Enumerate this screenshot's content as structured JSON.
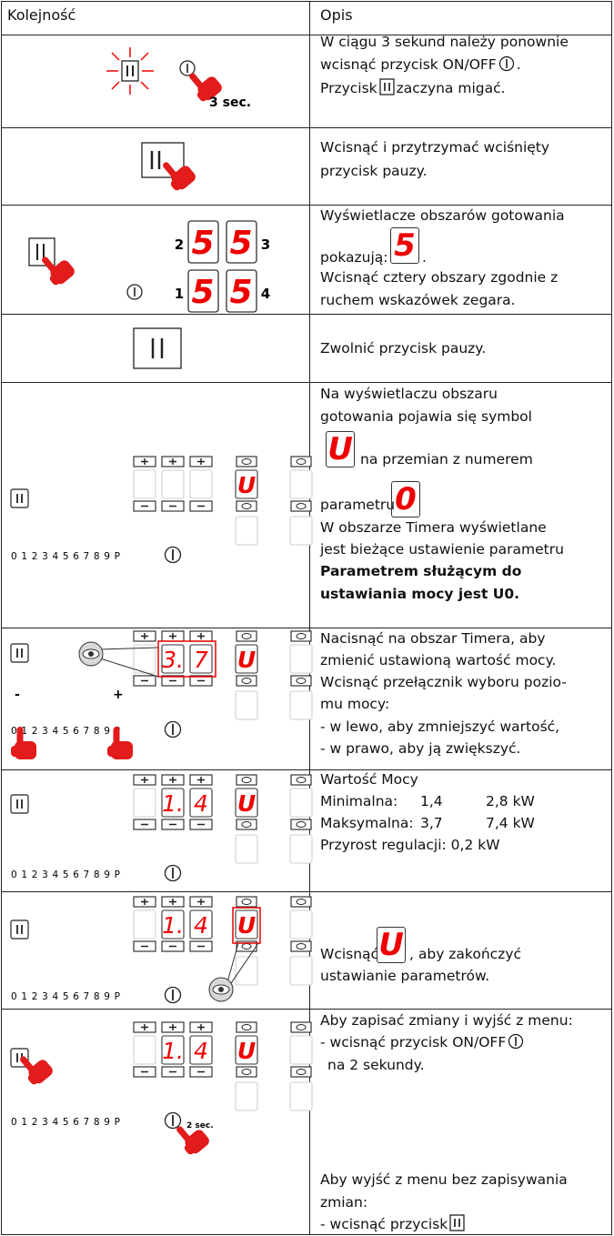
{
  "table": {
    "header": [
      "Kolejność",
      "Opis"
    ],
    "rows": [
      {
        "illustration": {
          "label": "3 sec."
        },
        "description": [
          "W ciągu 3 sekund należy ponownie",
          "wcisnąć przycisk ON/OFF",
          ".",
          "Przycisk",
          "zaczyna migać."
        ]
      },
      {
        "description": [
          "Wcisnąć i przytrzymać wciśnięty",
          "przycisk pauzy."
        ]
      },
      {
        "illustration": {
          "zones": [
            "2",
            "3",
            "1",
            "4"
          ],
          "display": "5"
        },
        "description": [
          "Wyświetlacze obszarów gotowania",
          "pokazują:",
          ".",
          "Wcisnąć cztery obszary zgodnie z",
          "ruchem wskazówek zegara."
        ],
        "symbols": [
          "5"
        ]
      },
      {
        "description": [
          "Zwolnić przycisk pauzy."
        ]
      },
      {
        "illustration": {
          "scale": "0 1 2 3 4 5 6 7 8 9 P",
          "timer": "U"
        },
        "description": [
          "Na wyświetlaczu obszaru",
          "gotowania pojawia się symbol",
          "na przemian z numerem",
          "parametru",
          "W obszarze Timera wyświetlane",
          "jest bieżące ustawienie parametru",
          "Parametrem służącym do",
          "ustawiania mocy jest U0."
        ],
        "symbols": [
          "U",
          "0"
        ]
      },
      {
        "illustration": {
          "scale": "0 1 2 3 4 5 6 7 8 9 P",
          "power": [
            "3.",
            "7"
          ],
          "timer": "U",
          "minus": "-",
          "plus": "+"
        },
        "description": [
          "Nacisnąć na obszar Timera, aby",
          "zmienić ustawioną wartość mocy.",
          "Wcisnąć przełącznik wyboru pozio-",
          "mu mocy:",
          "- w lewo, aby zmniejszyć wartość,",
          "- w prawo, aby ją zwiększyć."
        ]
      },
      {
        "illustration": {
          "scale": "0 1 2 3 4 5 6 7 8 9 P",
          "power": [
            "1.",
            "4"
          ],
          "timer": "U"
        },
        "description": [
          "Wartość Mocy",
          "Minimalna:",
          "1,4",
          "2,8 kW",
          "Maksymalna:",
          "3,7",
          "7,4 kW",
          "Przyrost regulacji: 0,2 kW"
        ]
      },
      {
        "illustration": {
          "scale": "0 1 2 3 4 5 6 7 8 9 P",
          "power": [
            "1.",
            "4"
          ],
          "timer": "U"
        },
        "description": [
          "Wcisnąć",
          ", aby zakończyć",
          "ustawianie parametrów."
        ],
        "symbols": [
          "U"
        ]
      },
      {
        "illustration": {
          "scale": "0 1 2 3 4 5 6 7 8 9 P",
          "power": [
            "1.",
            "4"
          ],
          "timer": "U",
          "label": "2 sec."
        },
        "description": [
          "Aby zapisać zmiany i wyjść z menu:",
          "- wcisnąć przycisk ON/OFF",
          "na 2 sekundy.",
          "Aby wyjść z menu bez zapisywania",
          "zmian:",
          "- wcisnąć przycisk"
        ]
      }
    ]
  }
}
